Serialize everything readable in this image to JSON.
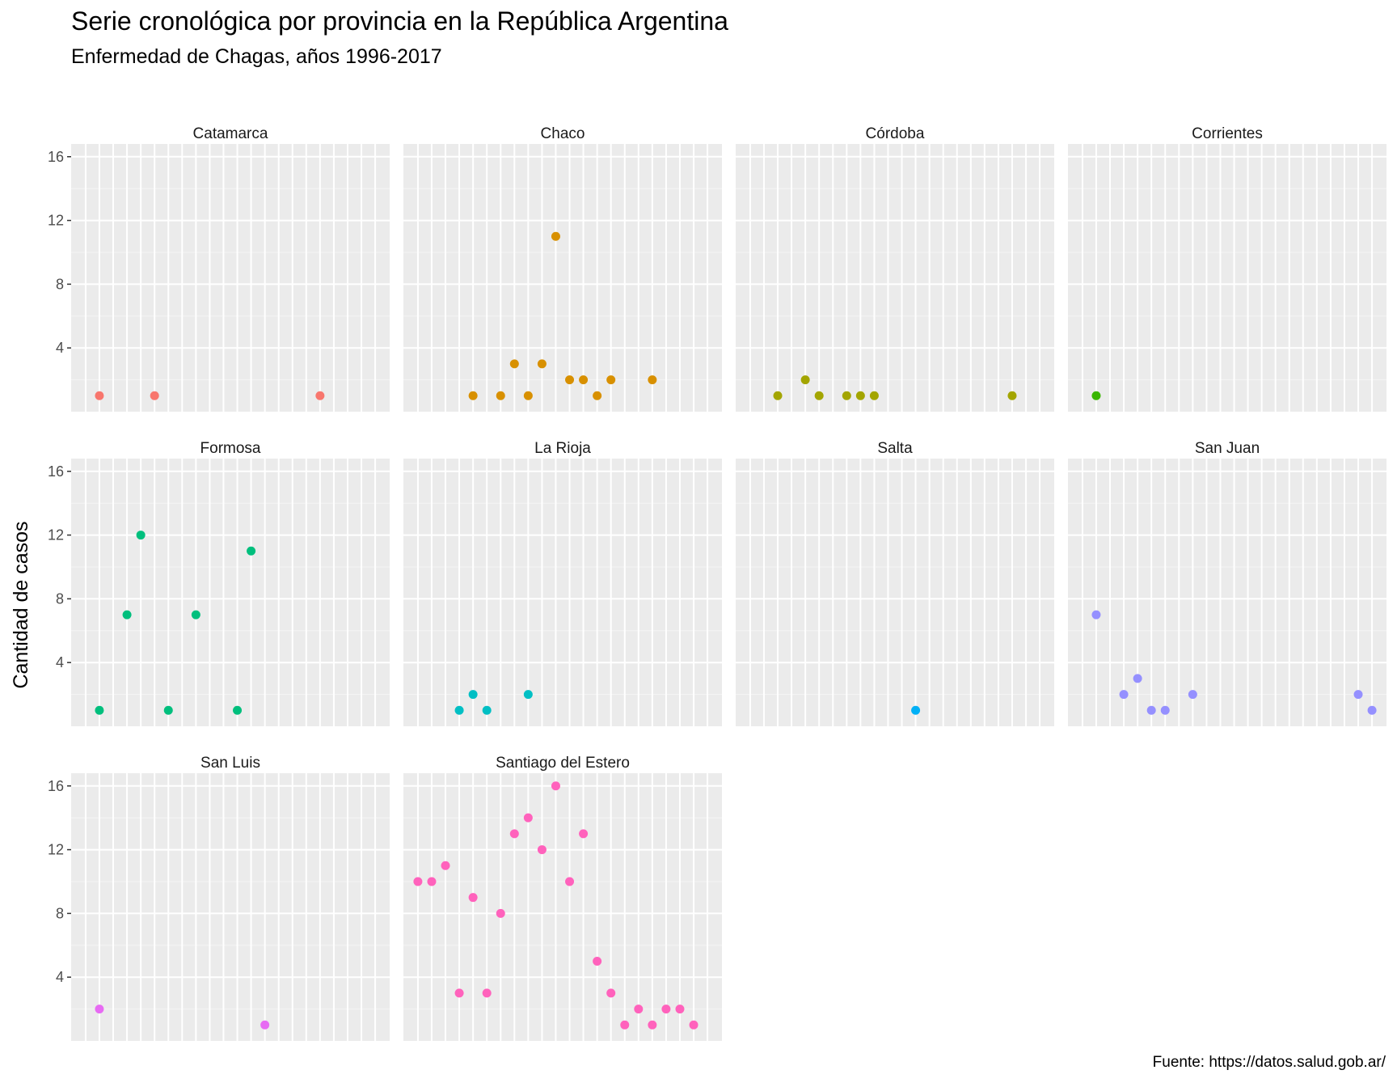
{
  "chart_data": {
    "type": "scatter",
    "title": "Serie cronológica por provincia en la República Argentina",
    "subtitle": "Enfermedad de Chagas, años 1996-2017",
    "caption": "Fuente: https://datos.salud.gob.ar/",
    "ylabel": "Cantidad de casos",
    "xlabel": "",
    "x_range": [
      1996,
      2017
    ],
    "ylim": [
      0,
      16.8
    ],
    "yticks": [
      4,
      8,
      12,
      16
    ],
    "yticks_labels": [
      "4",
      "8",
      "12",
      "16"
    ],
    "grid": true,
    "facet_layout": {
      "columns": 4,
      "rows": 3
    },
    "series": [
      {
        "name": "Catamarca",
        "color": "#F8766D",
        "x": [
          1997,
          2001,
          2013
        ],
        "y": [
          1,
          1,
          1
        ]
      },
      {
        "name": "Chaco",
        "color": "#D89000",
        "x": [
          2000,
          2002,
          2003,
          2004,
          2005,
          2006,
          2007,
          2008,
          2009,
          2010,
          2013
        ],
        "y": [
          1,
          1,
          3,
          1,
          3,
          11,
          2,
          2,
          1,
          2,
          2
        ]
      },
      {
        "name": "Córdoba",
        "color": "#A3A500",
        "x": [
          1998,
          2000,
          2001,
          2003,
          2004,
          2005,
          2015
        ],
        "y": [
          1,
          2,
          1,
          1,
          1,
          1,
          1
        ]
      },
      {
        "name": "Corrientes",
        "color": "#39B600",
        "x": [
          1997
        ],
        "y": [
          1
        ]
      },
      {
        "name": "Formosa",
        "color": "#00BF7D",
        "x": [
          1997,
          1999,
          2000,
          2002,
          2004,
          2007,
          2008
        ],
        "y": [
          1,
          7,
          12,
          1,
          7,
          1,
          11
        ]
      },
      {
        "name": "La Rioja",
        "color": "#00BFC4",
        "x": [
          1999,
          2000,
          2001,
          2004
        ],
        "y": [
          1,
          2,
          1,
          2
        ]
      },
      {
        "name": "Salta",
        "color": "#00B0F6",
        "x": [
          2008
        ],
        "y": [
          1
        ]
      },
      {
        "name": "San Juan",
        "color": "#9590FF",
        "x": [
          1997,
          1999,
          2000,
          2001,
          2002,
          2004,
          2016,
          2017
        ],
        "y": [
          7,
          2,
          3,
          1,
          1,
          2,
          2,
          1
        ]
      },
      {
        "name": "San Luis",
        "color": "#E76BF3",
        "x": [
          1997,
          2009
        ],
        "y": [
          2,
          1
        ]
      },
      {
        "name": "Santiago del Estero",
        "color": "#FF62BC",
        "x": [
          1996,
          1997,
          1998,
          1999,
          2000,
          2001,
          2002,
          2003,
          2004,
          2005,
          2006,
          2007,
          2008,
          2009,
          2010,
          2011,
          2012,
          2013,
          2014,
          2015,
          2016
        ],
        "y": [
          10,
          10,
          11,
          3,
          9,
          3,
          8,
          13,
          14,
          12,
          16,
          10,
          13,
          5,
          3,
          1,
          2,
          1,
          2,
          2,
          1
        ]
      }
    ]
  }
}
